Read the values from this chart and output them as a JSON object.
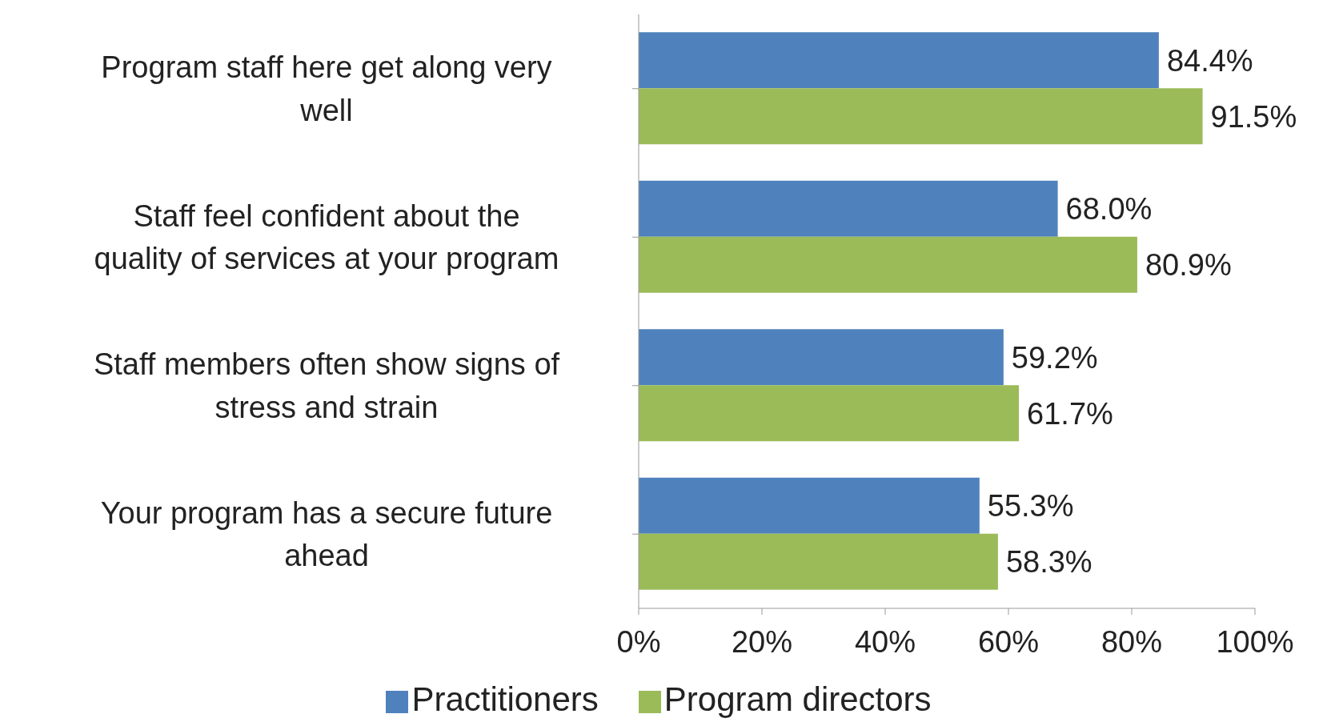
{
  "chart_data": {
    "type": "bar",
    "orientation": "horizontal",
    "categories": [
      "Program staff here get along very well",
      "Staff feel confident about the quality of services at your program",
      "Staff members often show signs of stress and strain",
      "Your program has a secure future ahead"
    ],
    "series": [
      {
        "name": "Practitioners",
        "color": "#4f81bd",
        "values": [
          84.4,
          68.0,
          59.2,
          55.3
        ],
        "value_labels": [
          "84.4%",
          "68.0%",
          "59.2%",
          "55.3%"
        ]
      },
      {
        "name": "Program directors",
        "color": "#9bbb59",
        "values": [
          91.5,
          80.9,
          61.7,
          58.3
        ],
        "value_labels": [
          "91.5%",
          "80.9%",
          "61.7%",
          "58.3%"
        ]
      }
    ],
    "xlim": [
      0,
      100
    ],
    "xticks": [
      {
        "value": 0,
        "label": "0%"
      },
      {
        "value": 20,
        "label": "20%"
      },
      {
        "value": 40,
        "label": "40%"
      },
      {
        "value": 60,
        "label": "60%"
      },
      {
        "value": 80,
        "label": "80%"
      },
      {
        "value": 100,
        "label": "100%"
      }
    ],
    "grid": false,
    "legend": "bottom"
  }
}
